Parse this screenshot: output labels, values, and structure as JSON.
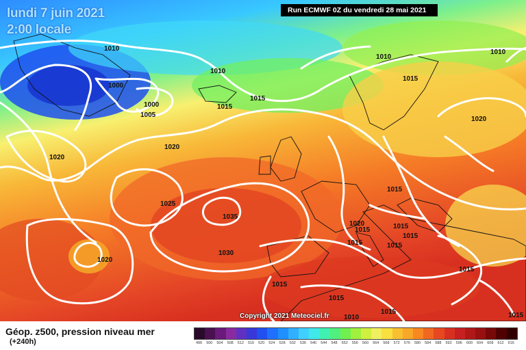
{
  "header": {
    "date_line": "lundi 7 juin 2021",
    "time_line": "2:00 locale",
    "run_info": "Run ECMWF 0Z du vendredi 28 mai 2021"
  },
  "map": {
    "copyright": "Copyright 2021 Meteociel.fr",
    "isobar_labels": [
      "1010",
      "1000",
      "1000",
      "1005",
      "1010",
      "1015",
      "1015",
      "1010",
      "1015",
      "1010",
      "1020",
      "1020",
      "1020",
      "1025",
      "1035",
      "1030",
      "1020",
      "1015",
      "1020",
      "1015",
      "1015",
      "1015",
      "1015",
      "1015",
      "1015",
      "1015",
      "1015",
      "1010",
      "1015",
      "1015"
    ]
  },
  "legend": {
    "title": "Géop. z500, pression niveau mer",
    "subtitle": "(+240h)",
    "scale_labels": [
      "496",
      "500",
      "504",
      "508",
      "512",
      "516",
      "520",
      "524",
      "528",
      "532",
      "536",
      "540",
      "544",
      "548",
      "552",
      "556",
      "560",
      "564",
      "568",
      "572",
      "576",
      "580",
      "584",
      "588",
      "592",
      "596",
      "600",
      "604",
      "608",
      "612",
      "616"
    ],
    "scale_colors": [
      "#2a0a2a",
      "#4a1050",
      "#6a1a7a",
      "#8a2aa0",
      "#6030c0",
      "#3838d8",
      "#2050f0",
      "#2070ff",
      "#2090ff",
      "#30b0ff",
      "#40d0ff",
      "#40e8e8",
      "#40f0b0",
      "#50f080",
      "#70f050",
      "#a0f040",
      "#d0f040",
      "#f0f060",
      "#f8e040",
      "#f8c030",
      "#f8a828",
      "#f88820",
      "#f06820",
      "#e84820",
      "#d83020",
      "#c82020",
      "#b01818",
      "#981010",
      "#780808",
      "#500000",
      "#300000"
    ]
  }
}
